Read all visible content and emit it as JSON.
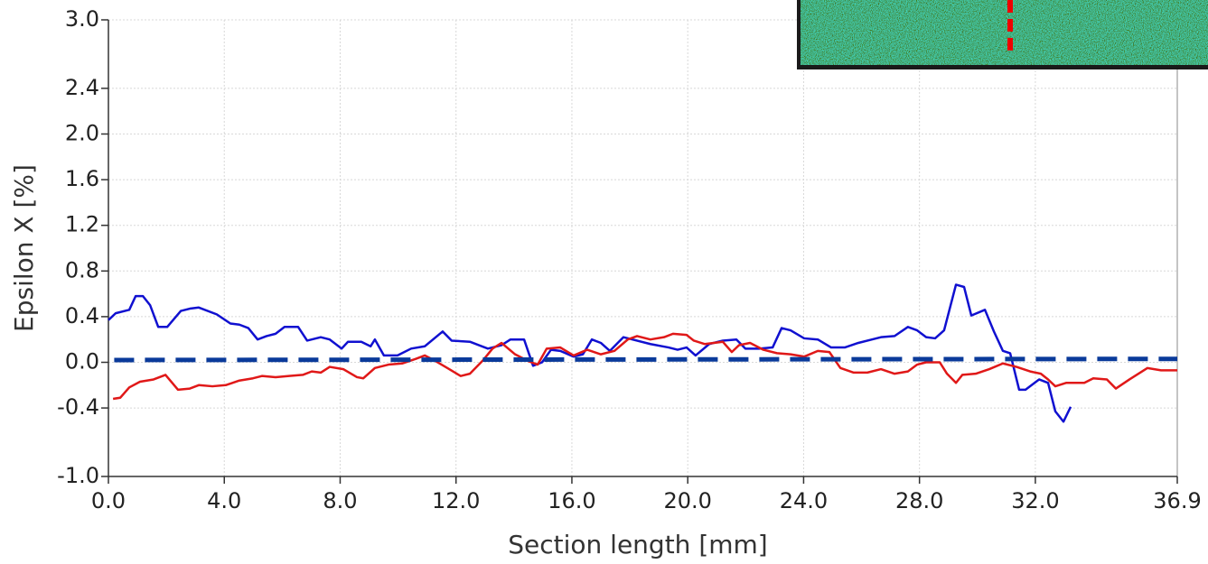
{
  "chart_data": {
    "type": "line",
    "xlabel": "Section length [mm]",
    "ylabel": "Epsilon X [%]",
    "xlim": [
      0,
      36.9
    ],
    "ylim": [
      -1,
      3
    ],
    "xticks": [
      {
        "value": 0,
        "label": "0.0"
      },
      {
        "value": 4,
        "label": "4.0"
      },
      {
        "value": 8,
        "label": "8.0"
      },
      {
        "value": 12,
        "label": "12.0"
      },
      {
        "value": 16,
        "label": "16.0"
      },
      {
        "value": 20,
        "label": "20.0"
      },
      {
        "value": 24,
        "label": "24.0"
      },
      {
        "value": 28,
        "label": "28.0"
      },
      {
        "value": 32,
        "label": "32.0"
      },
      36.9
    ],
    "yticks": [
      {
        "value": 3,
        "label": "3.0"
      },
      2.4,
      {
        "value": 2,
        "label": "2.0"
      },
      1.6,
      1.2,
      0.8,
      0.4,
      {
        "value": 0,
        "label": "0.0"
      },
      -0.4,
      {
        "value": -1,
        "label": "-1.0"
      }
    ],
    "grid": true,
    "series": [
      {
        "color": "#1010d0",
        "line_style": "solid",
        "x": [
          0.0,
          0.25,
          0.72,
          0.94,
          1.19,
          1.44,
          1.72,
          2.03,
          2.5,
          2.81,
          3.12,
          3.74,
          4.21,
          4.52,
          4.83,
          5.15,
          5.46,
          5.77,
          6.08,
          6.55,
          6.86,
          7.33,
          7.64,
          8.05,
          8.27,
          8.73,
          9.05,
          9.2,
          9.51,
          9.98,
          10.45,
          10.92,
          11.54,
          11.85,
          12.48,
          13.1,
          13.57,
          13.88,
          14.35,
          14.66,
          14.97,
          15.28,
          15.6,
          16.06,
          16.38,
          16.69,
          17.0,
          17.31,
          17.78,
          18.09,
          18.71,
          19.34,
          19.65,
          19.96,
          20.27,
          20.74,
          21.21,
          21.68,
          21.99,
          22.46,
          22.93,
          23.24,
          23.55,
          24.02,
          24.49,
          24.95,
          25.42,
          25.89,
          26.36,
          26.67,
          27.14,
          27.6,
          27.92,
          28.23,
          28.54,
          28.85,
          29.26,
          29.54,
          29.79,
          30.26,
          30.57,
          30.88,
          31.13,
          31.44,
          31.66,
          32.13,
          32.44,
          32.69,
          32.97,
          33.22
        ],
        "values": [
          0.37,
          0.43,
          0.46,
          0.58,
          0.58,
          0.5,
          0.31,
          0.31,
          0.45,
          0.47,
          0.48,
          0.42,
          0.34,
          0.33,
          0.3,
          0.2,
          0.23,
          0.25,
          0.31,
          0.31,
          0.19,
          0.22,
          0.2,
          0.12,
          0.18,
          0.18,
          0.14,
          0.2,
          0.06,
          0.06,
          0.12,
          0.14,
          0.27,
          0.19,
          0.18,
          0.12,
          0.15,
          0.2,
          0.2,
          -0.03,
          0.0,
          0.11,
          0.1,
          0.05,
          0.07,
          0.2,
          0.17,
          0.1,
          0.22,
          0.2,
          0.16,
          0.13,
          0.11,
          0.13,
          0.06,
          0.16,
          0.19,
          0.2,
          0.12,
          0.12,
          0.13,
          0.3,
          0.28,
          0.21,
          0.2,
          0.13,
          0.13,
          0.17,
          0.2,
          0.22,
          0.23,
          0.31,
          0.28,
          0.22,
          0.21,
          0.28,
          0.68,
          0.66,
          0.41,
          0.46,
          0.27,
          0.1,
          0.08,
          -0.24,
          -0.24,
          -0.15,
          -0.18,
          -0.43,
          -0.52,
          -0.39
        ]
      },
      {
        "color": "#e01818",
        "line_style": "solid",
        "x": [
          0.16,
          0.41,
          0.72,
          1.09,
          1.56,
          1.97,
          2.4,
          2.81,
          3.12,
          3.59,
          4.05,
          4.52,
          4.99,
          5.3,
          5.77,
          6.24,
          6.71,
          7.02,
          7.33,
          7.64,
          8.11,
          8.58,
          8.8,
          9.2,
          9.67,
          10.14,
          10.61,
          10.92,
          11.23,
          11.7,
          12.16,
          12.48,
          12.94,
          13.26,
          13.57,
          14.04,
          14.5,
          14.82,
          15.13,
          15.6,
          16.06,
          16.53,
          17.0,
          17.47,
          17.93,
          18.25,
          18.71,
          19.18,
          19.49,
          19.96,
          20.21,
          20.59,
          20.9,
          21.21,
          21.52,
          21.77,
          22.15,
          22.61,
          23.08,
          23.55,
          24.02,
          24.49,
          24.89,
          25.27,
          25.73,
          26.2,
          26.67,
          27.14,
          27.6,
          27.92,
          28.23,
          28.7,
          28.95,
          29.26,
          29.48,
          29.94,
          30.41,
          30.88,
          31.35,
          31.82,
          32.19,
          32.44,
          32.69,
          33.06,
          33.69,
          34.0,
          34.47,
          34.78,
          35.25,
          35.87,
          36.34,
          36.9
        ],
        "values": [
          -0.32,
          -0.31,
          -0.22,
          -0.17,
          -0.15,
          -0.11,
          -0.24,
          -0.23,
          -0.2,
          -0.21,
          -0.2,
          -0.16,
          -0.14,
          -0.12,
          -0.13,
          -0.12,
          -0.11,
          -0.08,
          -0.09,
          -0.04,
          -0.06,
          -0.13,
          -0.14,
          -0.05,
          -0.02,
          -0.01,
          0.03,
          0.06,
          0.02,
          -0.05,
          -0.12,
          -0.1,
          0.02,
          0.12,
          0.17,
          0.07,
          0.01,
          -0.02,
          0.12,
          0.13,
          0.06,
          0.11,
          0.07,
          0.1,
          0.2,
          0.23,
          0.2,
          0.22,
          0.25,
          0.24,
          0.19,
          0.16,
          0.17,
          0.18,
          0.09,
          0.15,
          0.17,
          0.11,
          0.08,
          0.07,
          0.05,
          0.1,
          0.09,
          -0.05,
          -0.09,
          -0.09,
          -0.06,
          -0.1,
          -0.08,
          -0.02,
          0.0,
          0.0,
          -0.1,
          -0.18,
          -0.11,
          -0.1,
          -0.06,
          -0.01,
          -0.04,
          -0.08,
          -0.1,
          -0.15,
          -0.21,
          -0.18,
          -0.18,
          -0.14,
          -0.15,
          -0.23,
          -0.15,
          -0.05,
          -0.07,
          -0.07
        ]
      },
      {
        "color": "#0a3a9a",
        "line_style": "dashed",
        "x": [
          0.2,
          36.9
        ],
        "values": [
          0.02,
          0.03
        ]
      }
    ]
  }
}
